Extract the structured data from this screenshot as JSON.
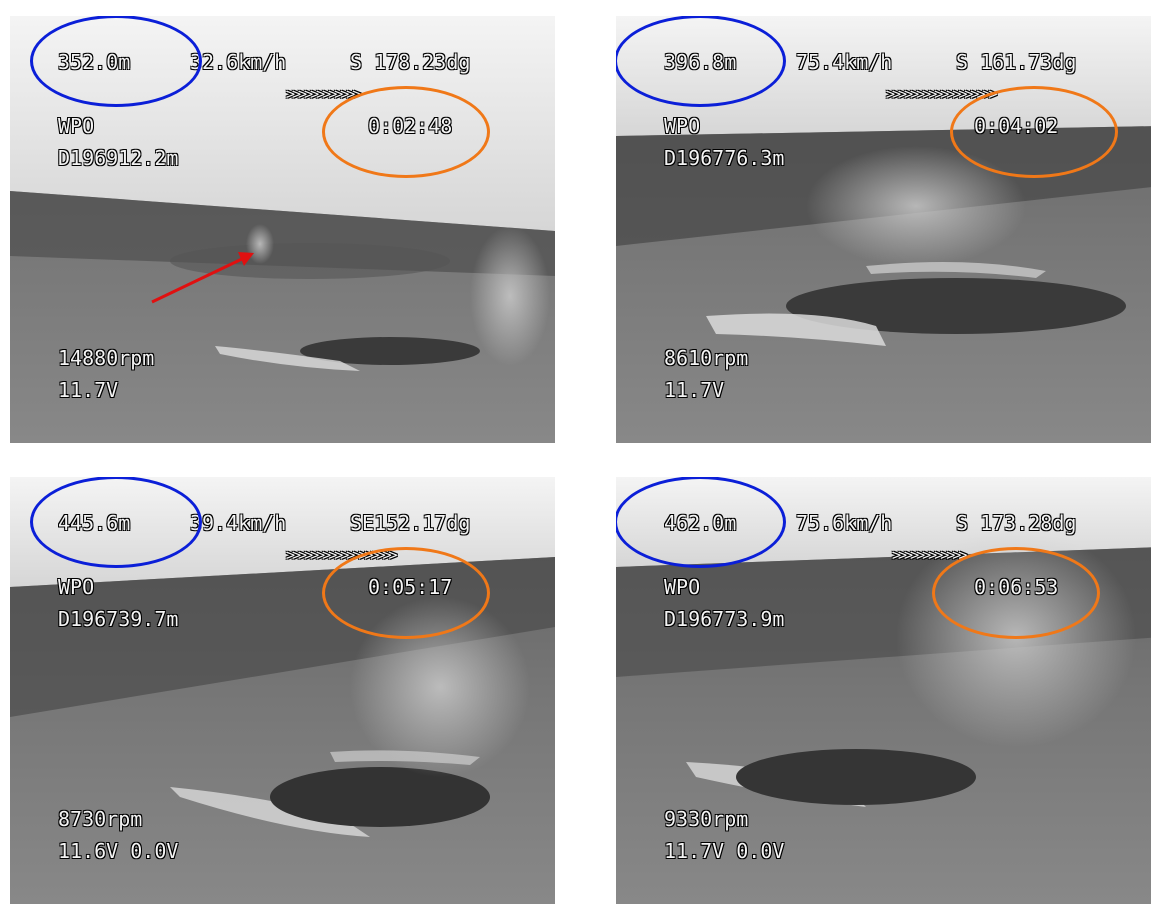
{
  "colors": {
    "altitude_ring": "#0b1fd8",
    "time_ring": "#f07818",
    "arrow": "#e01010"
  },
  "frames": [
    {
      "altitude": "352.0m",
      "speed": "32.6km/h",
      "heading": "S 178.23dg",
      "bearing": ">>>>>>>>>>>>",
      "mode": "WPO",
      "time": "0:02:48",
      "distance": "D196912.2m",
      "rpm": "14880rpm",
      "voltage": "11.7V"
    },
    {
      "altitude": "396.8m",
      "speed": "75.4km/h",
      "heading": "S 161.73dg",
      "bearing": ">>>>>>>>>>>>>>>>>>",
      "mode": "WPO",
      "time": "0:04:02",
      "distance": "D196776.3m",
      "rpm": "8610rpm",
      "voltage": "11.7V"
    },
    {
      "altitude": "445.6m",
      "speed": "39.4km/h",
      "heading": "SE152.17dg",
      "bearing": ">>>>>>>>>>>>>>>>>>",
      "mode": "WPO",
      "time": "0:05:17",
      "distance": "D196739.7m",
      "rpm": "8730rpm",
      "voltage": "11.6V 0.0V"
    },
    {
      "altitude": "462.0m",
      "speed": "75.6km/h",
      "heading": "S 173.28dg",
      "bearing": ">>>>>>>>>>>>",
      "mode": "WPO",
      "time": "0:06:53",
      "distance": "D196773.9m",
      "rpm": "9330rpm",
      "voltage": "11.7V 0.0V"
    }
  ]
}
